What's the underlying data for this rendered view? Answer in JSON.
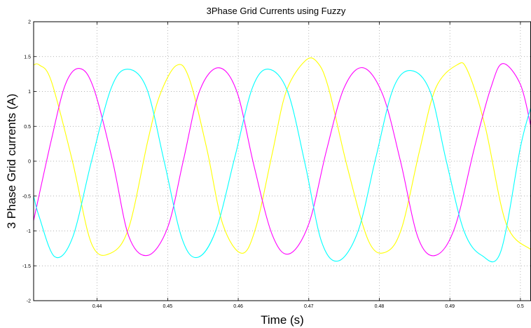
{
  "chart_data": {
    "type": "line",
    "title": "3Phase Grid Currents using Fuzzy",
    "xlabel": "Time (s)",
    "ylabel": "3 Phase Grid currents (A)",
    "xlim": [
      0.431,
      0.5015
    ],
    "ylim": [
      -2,
      2
    ],
    "x_ticks": [
      "0.44",
      "0.45",
      "0.46",
      "0.47",
      "0.48",
      "0.49",
      "0.5"
    ],
    "x_tick_values": [
      0.44,
      0.45,
      0.46,
      0.47,
      0.48,
      0.49,
      0.5
    ],
    "y_ticks": [
      "-2",
      "-1.5",
      "-1",
      "-0.5",
      "0",
      "0.5",
      "1",
      "1.5",
      "2"
    ],
    "y_tick_values": [
      -2,
      -1.5,
      -1,
      -0.5,
      0,
      0.5,
      1,
      1.5,
      2
    ],
    "grid": true,
    "series": [
      {
        "color": "#ffff00",
        "x": [
          0.431,
          0.4318,
          0.4335,
          0.4365,
          0.4392,
          0.4419,
          0.4445,
          0.4472,
          0.4489,
          0.4512,
          0.453,
          0.4555,
          0.4578,
          0.4605,
          0.4625,
          0.4648,
          0.4668,
          0.4695,
          0.4712,
          0.4728,
          0.4755,
          0.4785,
          0.481,
          0.4832,
          0.4857,
          0.488,
          0.491,
          0.4925,
          0.495,
          0.498,
          0.5015
        ],
        "y": [
          1.38,
          1.38,
          1.15,
          0.0,
          -1.18,
          -1.32,
          -0.95,
          0.3,
          0.95,
          1.37,
          1.2,
          0.2,
          -0.9,
          -1.32,
          -0.95,
          0.1,
          1.0,
          1.44,
          1.42,
          1.05,
          -0.1,
          -1.15,
          -1.3,
          -0.95,
          0.15,
          1.05,
          1.38,
          1.3,
          0.5,
          -0.9,
          -1.27
        ]
      },
      {
        "color": "#ff00ff",
        "x": [
          0.431,
          0.4335,
          0.4355,
          0.4375,
          0.4395,
          0.4422,
          0.4445,
          0.4472,
          0.45,
          0.4522,
          0.4545,
          0.4572,
          0.4598,
          0.4622,
          0.4648,
          0.4672,
          0.47,
          0.4725,
          0.475,
          0.4777,
          0.4805,
          0.483,
          0.4855,
          0.488,
          0.4907,
          0.4935,
          0.4958,
          0.4975,
          0.5,
          0.5015
        ],
        "y": [
          -0.85,
          0.3,
          1.1,
          1.33,
          1.05,
          0.0,
          -1.08,
          -1.35,
          -0.95,
          0.0,
          1.0,
          1.34,
          1.0,
          -0.05,
          -1.05,
          -1.33,
          -0.9,
          0.15,
          1.05,
          1.34,
          0.95,
          0.0,
          -1.1,
          -1.35,
          -0.95,
          0.2,
          1.05,
          1.4,
          1.1,
          0.49
        ]
      },
      {
        "color": "#00ffff",
        "x": [
          0.431,
          0.4318,
          0.434,
          0.4365,
          0.4392,
          0.442,
          0.4443,
          0.447,
          0.4495,
          0.452,
          0.4542,
          0.4568,
          0.4595,
          0.462,
          0.4643,
          0.467,
          0.4695,
          0.4718,
          0.4742,
          0.477,
          0.4795,
          0.482,
          0.4845,
          0.4872,
          0.4895,
          0.492,
          0.4945,
          0.4972,
          0.5,
          0.5015
        ],
        "y": [
          -0.5,
          -0.8,
          -1.37,
          -1.1,
          0.0,
          1.05,
          1.32,
          1.05,
          0.0,
          -1.1,
          -1.38,
          -1.0,
          0.05,
          1.05,
          1.32,
          1.0,
          -0.05,
          -1.15,
          -1.43,
          -1.0,
          0.05,
          1.05,
          1.3,
          1.0,
          0.0,
          -1.0,
          -1.35,
          -1.3,
          0.2,
          0.78
        ]
      }
    ]
  }
}
